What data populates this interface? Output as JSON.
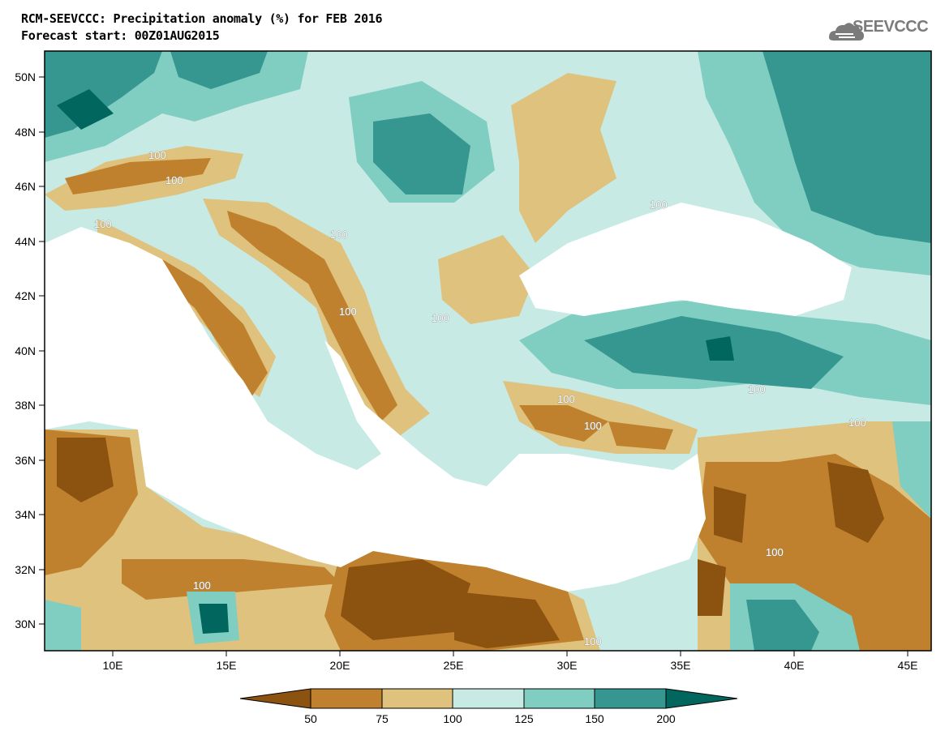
{
  "header": {
    "title": "RCM-SEEVCCC: Precipitation anomaly (%) for FEB 2016",
    "subtitle": "Forecast start: 00Z01AUG2015",
    "logo_text": "SEEVCCC"
  },
  "map": {
    "lon_range": [
      7,
      46
    ],
    "lat_range": [
      29,
      51
    ],
    "lon_ticks": [
      "10E",
      "15E",
      "20E",
      "25E",
      "30E",
      "35E",
      "40E",
      "45E"
    ],
    "lat_ticks": [
      "50N",
      "48N",
      "46N",
      "44N",
      "42N",
      "40N",
      "38N",
      "36N",
      "34N",
      "32N",
      "30N"
    ],
    "contour_labels": [
      "100",
      "100",
      "100",
      "100",
      "100",
      "100",
      "100",
      "100",
      "100",
      "100",
      "100",
      "100",
      "100",
      "100"
    ],
    "colors": {
      "lt50": "#8c5210",
      "b50_75": "#bf812d",
      "b75_100": "#dfc27d",
      "b100_125": "#c7eae5",
      "b125_150": "#80cdc1",
      "b150_200": "#35978f",
      "gt200": "#01665e",
      "sea": "#ffffff"
    }
  },
  "colorbar": {
    "labels": [
      "50",
      "75",
      "100",
      "125",
      "150",
      "200"
    ],
    "colors": [
      "#8c5210",
      "#bf812d",
      "#dfc27d",
      "#c7eae5",
      "#80cdc1",
      "#35978f",
      "#01665e"
    ]
  }
}
